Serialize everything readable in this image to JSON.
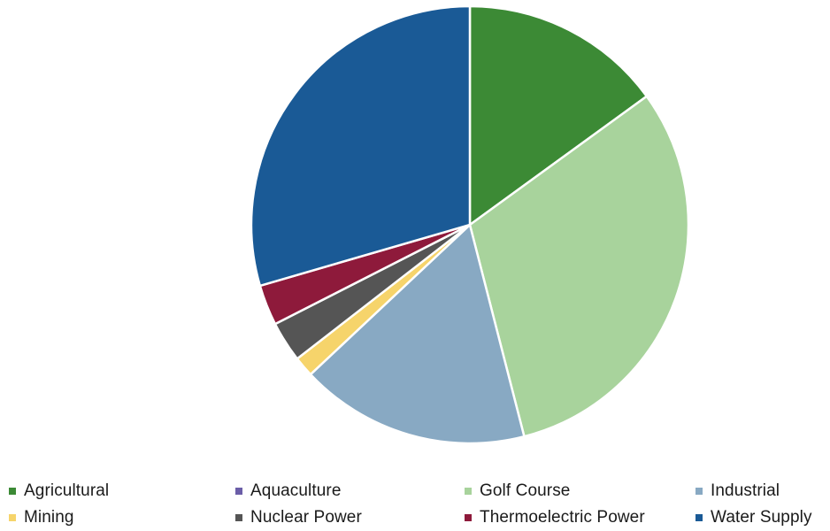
{
  "chart_data": {
    "type": "pie",
    "title": "",
    "legend_position": "bottom",
    "slices": [
      {
        "label": "Agricultural",
        "value": 15.0,
        "color": "#3c8a35"
      },
      {
        "label": "Aquaculture",
        "value": 0.0,
        "color": "#6b5ea8"
      },
      {
        "label": "Golf Course",
        "value": 31.0,
        "color": "#a8d39c"
      },
      {
        "label": "Industrial",
        "value": 17.0,
        "color": "#88a9c3"
      },
      {
        "label": "Mining",
        "value": 1.5,
        "color": "#f6d46b"
      },
      {
        "label": "Nuclear Power",
        "value": 3.0,
        "color": "#555555"
      },
      {
        "label": "Thermoelectric Power",
        "value": 3.0,
        "color": "#8e1a3b"
      },
      {
        "label": "Water Supply",
        "value": 29.5,
        "color": "#1a5a96"
      }
    ]
  }
}
